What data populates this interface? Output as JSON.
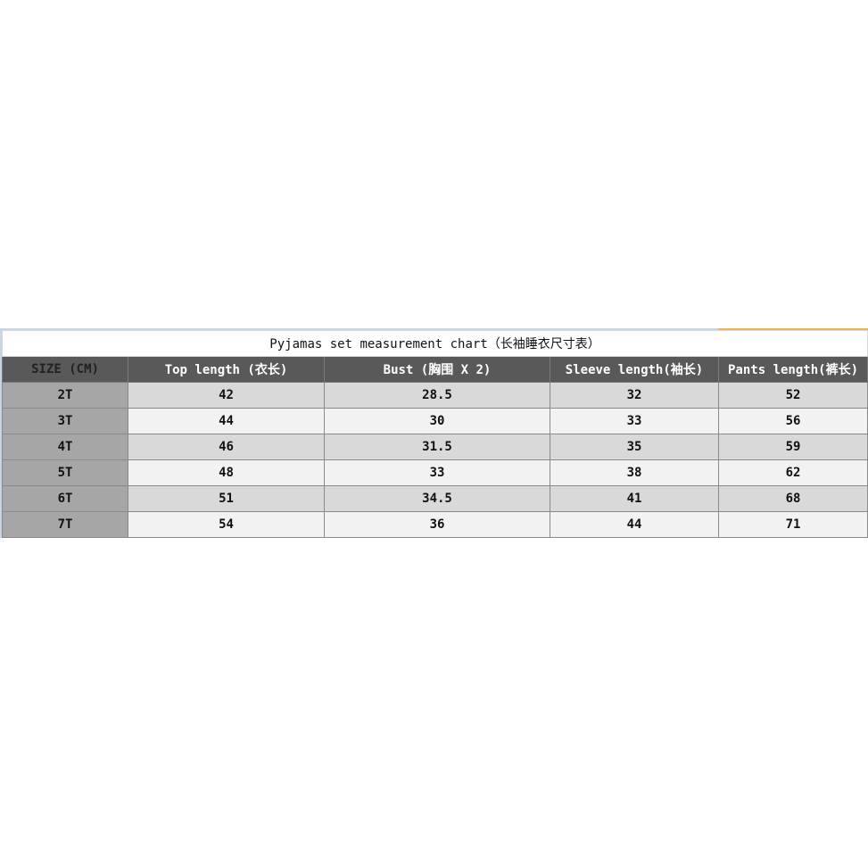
{
  "title": "Pyjamas set measurement chart（长袖睡衣尺寸表）",
  "headers": [
    "SIZE (CM)",
    "Top length (衣长)",
    "Bust (胸围 X 2)",
    "Sleeve length(袖长)",
    "Pants length(裤长)"
  ],
  "rows": [
    [
      "2T",
      "42",
      "28.5",
      "32",
      "52"
    ],
    [
      "3T",
      "44",
      "30",
      "33",
      "56"
    ],
    [
      "4T",
      "46",
      "31.5",
      "35",
      "59"
    ],
    [
      "5T",
      "48",
      "33",
      "38",
      "62"
    ],
    [
      "6T",
      "51",
      "34.5",
      "41",
      "68"
    ],
    [
      "7T",
      "54",
      "36",
      "44",
      "71"
    ]
  ],
  "colors": {
    "header_bg": "#595959",
    "size_col_bg": "#a6a6a6",
    "row_dark": "#d9d9d9",
    "row_light": "#f2f2f2"
  }
}
